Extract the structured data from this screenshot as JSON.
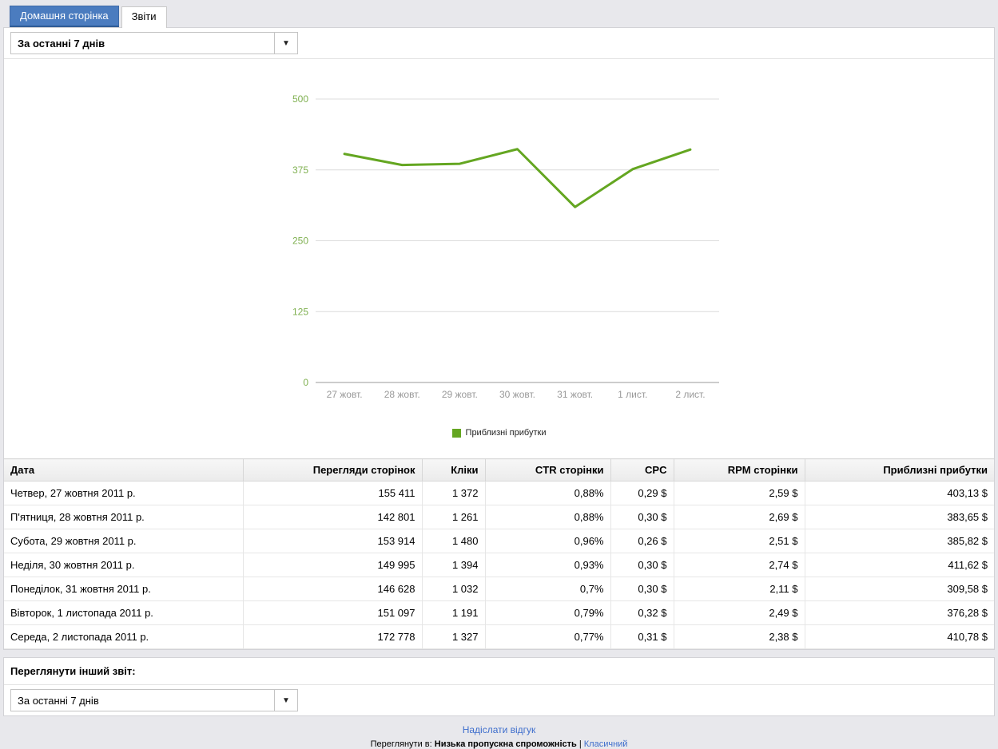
{
  "tabs": [
    {
      "label": "Домашня сторінка",
      "active": false
    },
    {
      "label": "Звіти",
      "active": true
    }
  ],
  "icons": {
    "dropdown_arrow": "▼"
  },
  "report_selector": {
    "value": "За останні 7 днів"
  },
  "chart_data": {
    "type": "line",
    "x": [
      "27 жовт.",
      "28 жовт.",
      "29 жовт.",
      "30 жовт.",
      "31 жовт.",
      "1 лист.",
      "2 лист."
    ],
    "series": [
      {
        "name": "Приблизні прибутки",
        "values": [
          403.13,
          383.65,
          385.82,
          411.62,
          309.58,
          376.28,
          410.78
        ],
        "color": "#64a621"
      }
    ],
    "ylim": [
      0,
      500
    ],
    "yticks": [
      0,
      125,
      250,
      375,
      500
    ],
    "grid": true,
    "legend_position": "bottom",
    "ytick_color": "#7fb050",
    "xtick_color": "#999999",
    "grid_color": "#dcdcdc",
    "axis_color": "#9a9a9a"
  },
  "table": {
    "headers": [
      "Дата",
      "Перегляди сторінок",
      "Кліки",
      "CTR сторінки",
      "CPC",
      "RPM сторінки",
      "Приблизні прибутки"
    ],
    "rows": [
      [
        "Четвер, 27 жовтня 2011 р.",
        "155 411",
        "1 372",
        "0,88%",
        "0,29 $",
        "2,59 $",
        "403,13 $"
      ],
      [
        "П'ятниця, 28 жовтня 2011 р.",
        "142 801",
        "1 261",
        "0,88%",
        "0,30 $",
        "2,69 $",
        "383,65 $"
      ],
      [
        "Субота, 29 жовтня 2011 р.",
        "153 914",
        "1 480",
        "0,96%",
        "0,26 $",
        "2,51 $",
        "385,82 $"
      ],
      [
        "Неділя, 30 жовтня 2011 р.",
        "149 995",
        "1 394",
        "0,93%",
        "0,30 $",
        "2,74 $",
        "411,62 $"
      ],
      [
        "Понеділок, 31 жовтня 2011 р.",
        "146 628",
        "1 032",
        "0,7%",
        "0,30 $",
        "2,11 $",
        "309,58 $"
      ],
      [
        "Вівторок, 1 листопада 2011 р.",
        "151 097",
        "1 191",
        "0,79%",
        "0,32 $",
        "2,49 $",
        "376,28 $"
      ],
      [
        "Середа, 2 листопада 2011 р.",
        "172 778",
        "1 327",
        "0,77%",
        "0,31 $",
        "2,38 $",
        "410,78 $"
      ]
    ]
  },
  "other_report": {
    "heading": "Переглянути інший звіт:",
    "selector_value": "За останні 7 днів"
  },
  "footer": {
    "feedback_link": "Надіслати відгук",
    "view_in_label": "Переглянути в:",
    "low_bandwidth": "Низька пропускна спроможність",
    "separator": "|",
    "classic_link": "Класичний"
  },
  "colors": {
    "tab_blue": "#4b7cbf",
    "link_blue": "#3d6dcc",
    "chart_green": "#64a621"
  }
}
